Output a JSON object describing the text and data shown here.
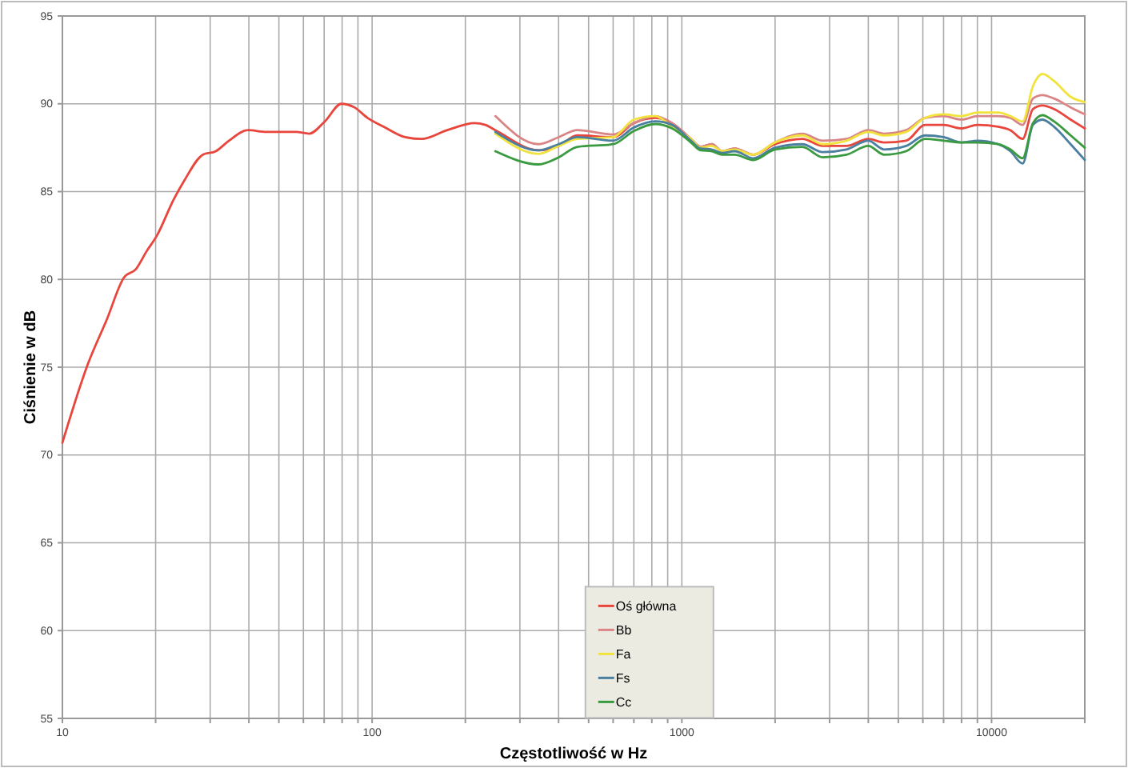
{
  "chart_data": {
    "type": "line",
    "xlabel": "Częstotliwość w Hz",
    "ylabel": "Ciśnienie w dB",
    "log": "x",
    "grid": true,
    "legend": "bottom",
    "marker": "none",
    "line_style": "solid",
    "xlim": [
      10,
      20000
    ],
    "ylim": [
      55,
      95
    ],
    "xticks": [
      10,
      {
        "value": 20,
        "label": null
      },
      {
        "value": 30,
        "label": null
      },
      {
        "value": 40,
        "label": null
      },
      {
        "value": 50,
        "label": null
      },
      {
        "value": 60,
        "label": null
      },
      {
        "value": 70,
        "label": null
      },
      {
        "value": 80,
        "label": null
      },
      {
        "value": 90,
        "label": null
      },
      100,
      {
        "value": 200,
        "label": null
      },
      {
        "value": 300,
        "label": null
      },
      {
        "value": 400,
        "label": null
      },
      {
        "value": 500,
        "label": null
      },
      {
        "value": 600,
        "label": null
      },
      {
        "value": 700,
        "label": null
      },
      {
        "value": 800,
        "label": null
      },
      {
        "value": 900,
        "label": null
      },
      1000,
      {
        "value": 2000,
        "label": null
      },
      {
        "value": 3000,
        "label": null
      },
      {
        "value": 4000,
        "label": null
      },
      {
        "value": 5000,
        "label": null
      },
      {
        "value": 6000,
        "label": null
      },
      {
        "value": 7000,
        "label": null
      },
      {
        "value": 8000,
        "label": null
      },
      {
        "value": 9000,
        "label": null
      },
      10000
    ],
    "yticks": [
      55,
      60,
      65,
      70,
      75,
      80,
      85,
      90,
      95
    ],
    "series": [
      {
        "name": "Oś główna",
        "color": "#e8453c",
        "x": [
          10,
          12.1,
          13.9,
          15.8,
          17.3,
          18.7,
          20.2,
          22.8,
          24.7,
          28.4,
          31.3,
          34.5,
          39.7,
          45.6,
          56.8,
          62.6,
          70.4,
          79.5,
          87.6,
          96.6,
          108.8,
          127.8,
          144.4,
          174.9,
          214,
          232,
          250,
          345,
          400,
          460,
          600,
          700,
          820,
          930,
          1070,
          1150,
          1250,
          1350,
          1480,
          1700,
          2000,
          2450,
          2850,
          3400,
          4000,
          4500,
          5300,
          6100,
          7000,
          8000,
          9000,
          10500,
          11500,
          12600,
          13600,
          14600,
          15900,
          18000,
          20000
        ],
        "values": [
          70.7,
          75.2,
          77.7,
          80.1,
          80.6,
          81.6,
          82.5,
          84.5,
          85.6,
          87.1,
          87.3,
          87.9,
          88.5,
          88.4,
          88.4,
          88.3,
          89.0,
          90.0,
          89.8,
          89.2,
          88.7,
          88.1,
          88.0,
          88.5,
          88.9,
          88.8,
          88.5,
          87.35,
          87.6,
          88.2,
          88.1,
          88.9,
          89.2,
          88.9,
          88.0,
          87.55,
          87.7,
          87.3,
          87.45,
          87.1,
          87.7,
          88.0,
          87.6,
          87.6,
          88.0,
          87.8,
          87.9,
          88.8,
          88.8,
          88.6,
          88.8,
          88.7,
          88.5,
          88.0,
          89.7,
          89.9,
          89.7,
          89.1,
          88.6
        ]
      },
      {
        "name": "Bb",
        "color": "#d98585",
        "x": [
          250,
          345,
          400,
          460,
          600,
          700,
          820,
          930,
          1070,
          1150,
          1250,
          1350,
          1480,
          1700,
          2000,
          2450,
          2850,
          3400,
          4000,
          4500,
          5300,
          6100,
          7000,
          8000,
          9000,
          10500,
          11500,
          12600,
          13600,
          14600,
          15900,
          18000,
          20000
        ],
        "values": [
          89.3,
          87.7,
          88.1,
          88.5,
          88.25,
          88.9,
          89.3,
          88.9,
          88.0,
          87.55,
          87.7,
          87.3,
          87.45,
          87.1,
          87.8,
          88.3,
          87.9,
          88.0,
          88.5,
          88.3,
          88.5,
          89.2,
          89.3,
          89.1,
          89.3,
          89.3,
          89.2,
          88.8,
          90.3,
          90.5,
          90.3,
          89.8,
          89.4
        ]
      },
      {
        "name": "Fa",
        "color": "#f2e23c",
        "x": [
          250,
          345,
          400,
          460,
          600,
          700,
          820,
          930,
          1070,
          1150,
          1250,
          1350,
          1480,
          1700,
          2000,
          2450,
          2850,
          3400,
          4000,
          4500,
          5300,
          6100,
          7000,
          8000,
          9000,
          10500,
          11500,
          12600,
          13600,
          14600,
          15900,
          18000,
          20000
        ],
        "values": [
          88.3,
          87.15,
          87.6,
          88.0,
          88.1,
          89.1,
          89.3,
          88.7,
          88.0,
          87.5,
          87.6,
          87.3,
          87.4,
          87.1,
          87.8,
          88.2,
          87.7,
          87.9,
          88.4,
          88.2,
          88.4,
          89.2,
          89.4,
          89.3,
          89.5,
          89.5,
          89.3,
          89.0,
          91.0,
          91.7,
          91.3,
          90.4,
          90.1
        ]
      },
      {
        "name": "Fs",
        "color": "#4a7fa0",
        "x": [
          250,
          345,
          400,
          460,
          600,
          700,
          820,
          930,
          1070,
          1150,
          1250,
          1350,
          1480,
          1700,
          2000,
          2450,
          2850,
          3400,
          4000,
          4500,
          5300,
          6100,
          7000,
          8000,
          9000,
          10500,
          11500,
          12600,
          13600,
          14600,
          15900,
          18000,
          20000
        ],
        "values": [
          88.4,
          87.35,
          87.7,
          88.1,
          87.9,
          88.65,
          89.0,
          88.8,
          87.9,
          87.45,
          87.4,
          87.2,
          87.3,
          86.9,
          87.5,
          87.7,
          87.25,
          87.4,
          87.9,
          87.4,
          87.6,
          88.2,
          88.1,
          87.8,
          87.9,
          87.7,
          87.3,
          86.6,
          88.8,
          89.1,
          88.7,
          87.7,
          86.8
        ]
      },
      {
        "name": "Cc",
        "color": "#3a9a40",
        "x": [
          250,
          345,
          400,
          460,
          600,
          700,
          820,
          930,
          1070,
          1150,
          1250,
          1350,
          1480,
          1700,
          2000,
          2450,
          2850,
          3400,
          4000,
          4500,
          5300,
          6100,
          7000,
          8000,
          9000,
          10500,
          11500,
          12600,
          13600,
          14600,
          15900,
          18000,
          20000
        ],
        "values": [
          87.3,
          86.55,
          86.95,
          87.55,
          87.7,
          88.45,
          88.85,
          88.6,
          87.8,
          87.35,
          87.3,
          87.1,
          87.1,
          86.8,
          87.4,
          87.55,
          86.95,
          87.1,
          87.6,
          87.1,
          87.3,
          88.0,
          87.9,
          87.8,
          87.8,
          87.7,
          87.4,
          86.9,
          88.9,
          89.35,
          89.0,
          88.2,
          87.5
        ]
      }
    ]
  }
}
